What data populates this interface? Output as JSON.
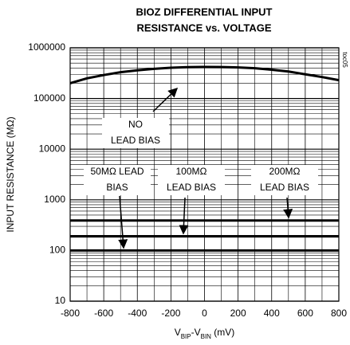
{
  "chart_data": {
    "type": "line",
    "title": [
      "BIOZ DIFFERENTIAL INPUT",
      "RESISTANCE vs. VOLTAGE"
    ],
    "figure_id": "toc05",
    "x_label": [
      {
        "text": "V"
      },
      {
        "text": "BIP",
        "sub": true
      },
      {
        "text": "-V"
      },
      {
        "text": "BIN",
        "sub": true
      },
      {
        "text": " (mV)"
      }
    ],
    "y_label": "INPUT RESISTANCE (MΩ)",
    "x": [
      -800,
      -700,
      -600,
      -500,
      -400,
      -300,
      -200,
      -100,
      0,
      100,
      200,
      300,
      400,
      500,
      600,
      700,
      800
    ],
    "series": [
      {
        "name": "NO LEAD BIAS",
        "color": "#000000",
        "values": [
          200000,
          250000,
          290000,
          330000,
          360000,
          385000,
          405000,
          415000,
          420000,
          418000,
          410000,
          395000,
          370000,
          340000,
          300000,
          265000,
          230000
        ]
      },
      {
        "name": "50MΩ LEAD BIAS",
        "color": "#000000",
        "values": [
          100,
          100,
          100,
          100,
          100,
          100,
          100,
          100,
          100,
          100,
          100,
          100,
          100,
          100,
          100,
          100,
          100
        ]
      },
      {
        "name": "100MΩ LEAD BIAS",
        "color": "#000000",
        "values": [
          190,
          190,
          190,
          190,
          190,
          190,
          190,
          190,
          190,
          190,
          190,
          190,
          190,
          190,
          190,
          190,
          190
        ]
      },
      {
        "name": "200MΩ LEAD BIAS",
        "color": "#000000",
        "values": [
          390,
          390,
          390,
          390,
          390,
          390,
          390,
          390,
          390,
          390,
          390,
          390,
          390,
          390,
          390,
          390,
          390
        ]
      }
    ],
    "annotations": [
      [
        "NO",
        "LEAD BIAS"
      ],
      [
        "50MΩ LEAD",
        "BIAS"
      ],
      [
        "100MΩ",
        "LEAD BIAS"
      ],
      [
        "200MΩ",
        "LEAD BIAS"
      ]
    ],
    "xlim": [
      -800,
      800
    ],
    "xticks": [
      -800,
      -600,
      -400,
      -200,
      0,
      200,
      400,
      600,
      800
    ],
    "ylim": [
      10,
      1000000
    ],
    "yticks": [
      10,
      100,
      1000,
      10000,
      100000,
      1000000
    ],
    "y_log": true,
    "grid": true,
    "minor_grid": true
  }
}
